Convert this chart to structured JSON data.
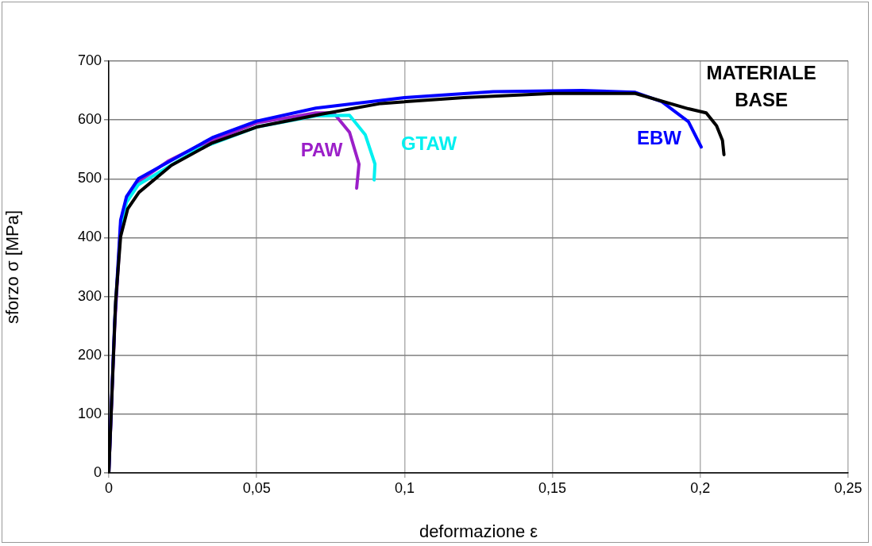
{
  "chart_data": {
    "type": "line",
    "xlabel": "deformazione ε",
    "ylabel": "sforzo σ [MPa]",
    "xlim": [
      0,
      0.25
    ],
    "xticks": [
      0,
      {
        "value": 0.05,
        "label": "0,05"
      },
      {
        "value": 0.1,
        "label": "0,1"
      },
      {
        "value": 0.15,
        "label": "0,15"
      },
      {
        "value": 0.2,
        "label": "0,2"
      },
      {
        "value": 0.25,
        "label": "0,25"
      }
    ],
    "ylim": [
      0,
      700
    ],
    "yticks": [
      0,
      100,
      200,
      300,
      400,
      500,
      600,
      700
    ],
    "grid": true,
    "legend": false,
    "marker": "none",
    "line_style": "solid",
    "series": [
      {
        "name": "PAW",
        "color": "#9b1fc8",
        "x": [
          0,
          0.002,
          0.004,
          0.006,
          0.01,
          0.02,
          0.03,
          0.05,
          0.07,
          0.076,
          0.0814,
          0.0846,
          0.0838
        ],
        "values": [
          0,
          250,
          420,
          465,
          495,
          530,
          555,
          595,
          612,
          612,
          579,
          525,
          484
        ]
      },
      {
        "name": "GTAW",
        "color": "#00f0f0",
        "x": [
          0.004,
          0.006,
          0.01,
          0.02,
          0.03,
          0.05,
          0.07,
          0.0814,
          0.0867,
          0.09,
          0.0897
        ],
        "values": [
          420,
          460,
          490,
          520,
          550,
          588,
          607,
          608,
          575,
          525,
          498
        ]
      },
      {
        "name": "EBW",
        "color": "#0000ff",
        "x": [
          0,
          0.002,
          0.004,
          0.006,
          0.01,
          0.02,
          0.035,
          0.05,
          0.07,
          0.1,
          0.13,
          0.16,
          0.178,
          0.187,
          0.196,
          0.2003
        ],
        "values": [
          0,
          260,
          430,
          470,
          500,
          528,
          570,
          598,
          620,
          638,
          648,
          650,
          647,
          631,
          597,
          554
        ]
      },
      {
        "name": "MATERIALE BASE",
        "color": "#000000",
        "x": [
          0,
          0.0023,
          0.004,
          0.0064,
          0.0102,
          0.0212,
          0.035,
          0.05,
          0.072,
          0.092,
          0.12,
          0.15,
          0.178,
          0.196,
          0.202,
          0.2055,
          0.2075,
          0.208
        ],
        "values": [
          0,
          291,
          402,
          449,
          477,
          523,
          561,
          588,
          610,
          628,
          638,
          645,
          645,
          619,
          612,
          590,
          565,
          541
        ]
      }
    ]
  }
}
